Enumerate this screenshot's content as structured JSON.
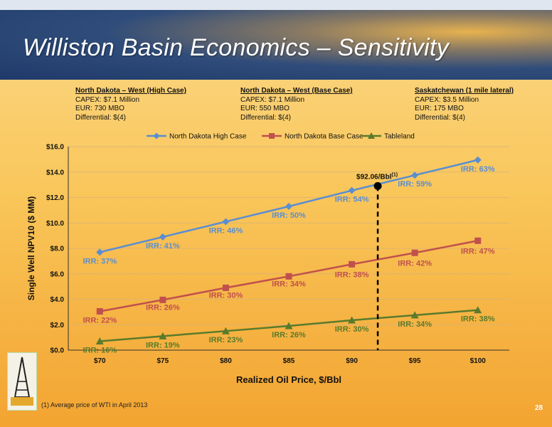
{
  "slide": {
    "title": "Williston Basin Economics – Sensitivity",
    "page_number": "28",
    "footnote": "(1)  Average price of WTI in April 2013"
  },
  "cases": [
    {
      "heading": "North Dakota – West (High Case)",
      "lines": [
        "CAPEX: $7.1 Million",
        "EUR: 730 MBO",
        "Differential: $(4)"
      ]
    },
    {
      "heading": "North Dakota – West  (Base Case)",
      "lines": [
        "CAPEX: $7.1 Million",
        "EUR: 550 MBO",
        "Differential: $(4)"
      ]
    },
    {
      "heading": "Saskatchewan (1 mile lateral)",
      "lines": [
        "CAPEX: $3.5 Million",
        "EUR: 175 MBO",
        "Differential: $(4)"
      ]
    }
  ],
  "colors": {
    "high": "#5b8ed0",
    "base": "#c0504d",
    "tableland": "#5a7a2b"
  },
  "chart_data": {
    "type": "line",
    "title": "",
    "xlabel": "Realized Oil Price, $/Bbl",
    "ylabel": "Single Well NPV10 ($ MM)",
    "x": [
      70,
      75,
      80,
      85,
      90,
      95,
      100
    ],
    "x_tick_labels": [
      "$70",
      "$75",
      "$80",
      "$85",
      "$90",
      "$95",
      "$100"
    ],
    "ylim": [
      0,
      16
    ],
    "y_tick_labels": [
      "$0.0",
      "$2.0",
      "$4.0",
      "$6.0",
      "$8.0",
      "$10.0",
      "$12.0",
      "$14.0",
      "$16.0"
    ],
    "legend_position": "top",
    "grid": true,
    "series": [
      {
        "name": "North Dakota High Case",
        "marker": "diamond",
        "color": "#5b8ed0",
        "values": [
          7.7,
          8.9,
          10.1,
          11.3,
          12.55,
          13.75,
          14.95
        ],
        "labels": [
          "IRR: 37%",
          "IRR: 41%",
          "IRR: 46%",
          "IRR: 50%",
          "IRR: 54%",
          "IRR: 59%",
          "IRR: 63%"
        ]
      },
      {
        "name": "North Dakota Base Case",
        "marker": "square",
        "color": "#c0504d",
        "values": [
          3.05,
          3.95,
          4.9,
          5.8,
          6.75,
          7.65,
          8.6
        ],
        "labels": [
          "IRR: 22%",
          "IRR: 26%",
          "IRR: 30%",
          "IRR: 34%",
          "IRR: 38%",
          "IRR: 42%",
          "IRR: 47%"
        ]
      },
      {
        "name": "Tableland",
        "marker": "triangle",
        "color": "#5a7a2b",
        "values": [
          0.7,
          1.1,
          1.5,
          1.9,
          2.35,
          2.75,
          3.15
        ],
        "labels": [
          "IRR: 16%",
          "IRR: 19%",
          "IRR: 23%",
          "IRR: 26%",
          "IRR: 30%",
          "IRR: 34%",
          "IRR: 38%"
        ]
      }
    ],
    "annotation": {
      "x": 92.06,
      "y": 12.9,
      "text": "$92.06/Bbl",
      "superscript": "(1)"
    }
  }
}
